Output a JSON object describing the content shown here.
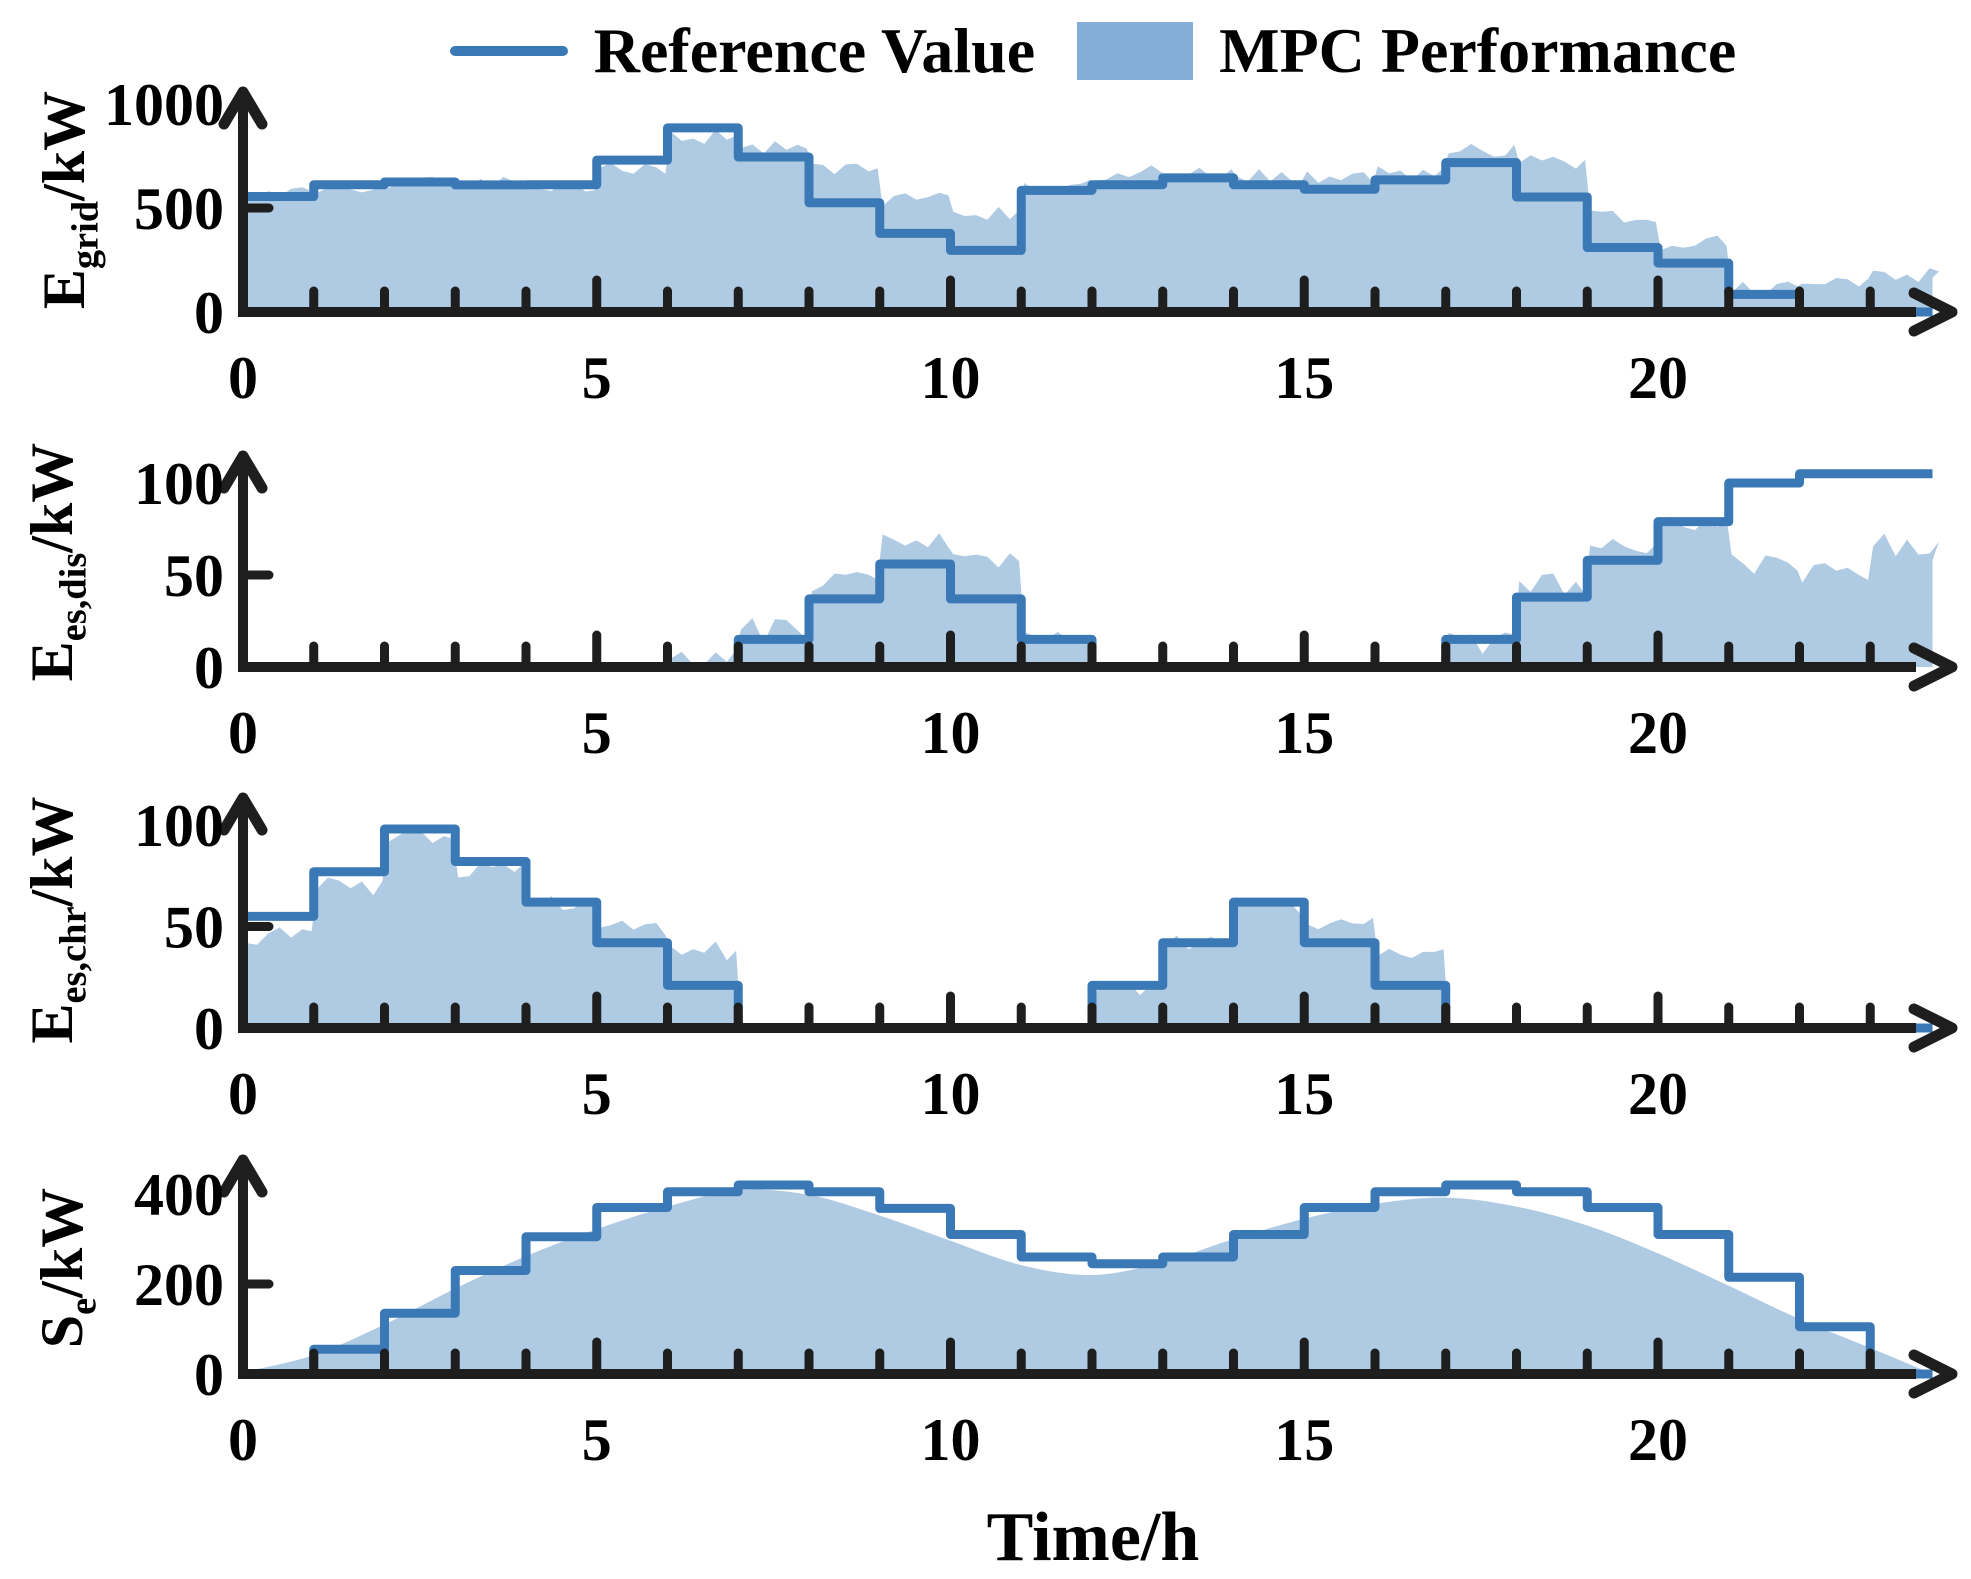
{
  "legend": {
    "items": [
      {
        "label": "Reference Value",
        "swatch": "line"
      },
      {
        "label": "MPC Performance",
        "swatch": "patch"
      }
    ]
  },
  "xlabel": "Time/h",
  "colors": {
    "reference_line": "#3B79B6",
    "mpc_fill": "#AFCAE3",
    "legend_patch": "#85AED7",
    "axis": "#1E1E1E",
    "text": "#000000"
  },
  "x_axis": {
    "labeled_ticks": [
      0,
      5,
      10,
      15,
      20
    ],
    "minor_tick_every_hours": 1,
    "range_hours": [
      0,
      24
    ]
  },
  "chart_data": [
    {
      "type": "area",
      "panel": "E_grid",
      "ylabel_main": "E",
      "ylabel_sub": "grid",
      "ylabel_unit": "/kW",
      "ylim": [
        0,
        1000
      ],
      "yticks": [
        0,
        500,
        1000
      ],
      "x_hours": [
        0,
        1,
        2,
        3,
        4,
        5,
        6,
        7,
        8,
        9,
        10,
        11,
        12,
        13,
        14,
        15,
        16,
        17,
        18,
        19,
        20,
        21,
        22,
        23
      ],
      "series": [
        {
          "name": "Reference Value",
          "style": "step-line",
          "values": [
            555,
            612,
            625,
            611,
            612,
            730,
            885,
            745,
            525,
            378,
            296,
            585,
            612,
            645,
            612,
            590,
            635,
            718,
            553,
            310,
            235,
            85,
            0,
            0
          ]
        },
        {
          "name": "MPC Performance",
          "style": "filled-area",
          "values": [
            578,
            608,
            615,
            628,
            612,
            695,
            838,
            795,
            685,
            540,
            468,
            622,
            668,
            672,
            655,
            642,
            665,
            775,
            722,
            455,
            335,
            108,
            150,
            180
          ],
          "end_value": 165,
          "noise_amp": 38,
          "smooth": false
        }
      ]
    },
    {
      "type": "area",
      "panel": "E_es,dis",
      "ylabel_main": "E",
      "ylabel_sub": "es,dis",
      "ylabel_unit": "/kW",
      "ylim": [
        0,
        110
      ],
      "yticks": [
        0,
        50,
        100
      ],
      "x_hours": [
        0,
        1,
        2,
        3,
        4,
        5,
        6,
        7,
        8,
        9,
        10,
        11,
        12,
        13,
        14,
        15,
        16,
        17,
        18,
        19,
        20,
        21,
        22,
        23
      ],
      "series": [
        {
          "name": "Reference Value",
          "style": "step-line",
          "values": [
            0,
            0,
            0,
            0,
            0,
            0,
            0,
            15,
            37,
            56,
            37,
            15,
            0,
            0,
            0,
            0,
            0,
            15,
            38,
            58,
            79,
            100,
            105,
            105
          ]
        },
        {
          "name": "MPC Performance",
          "style": "filled-area",
          "values": [
            0,
            0,
            0,
            0,
            0,
            0,
            3,
            20,
            46,
            66,
            56,
            13,
            0,
            0,
            0,
            0,
            0,
            13,
            45,
            64,
            77,
            55,
            52,
            66
          ],
          "end_value": 58,
          "noise_amp": 7,
          "smooth": false
        }
      ]
    },
    {
      "type": "area",
      "panel": "E_es,chr",
      "ylabel_main": "E",
      "ylabel_sub": "es,chr",
      "ylabel_unit": "/kW",
      "ylim": [
        0,
        110
      ],
      "yticks": [
        0,
        50,
        100
      ],
      "x_hours": [
        0,
        1,
        2,
        3,
        4,
        5,
        6,
        7,
        8,
        9,
        10,
        11,
        12,
        13,
        14,
        15,
        16,
        17,
        18,
        19,
        20,
        21,
        22,
        23
      ],
      "series": [
        {
          "name": "Reference Value",
          "style": "step-line",
          "values": [
            55,
            77,
            98,
            82,
            62,
            42,
            21,
            0,
            0,
            0,
            0,
            0,
            21,
            42,
            62,
            42,
            21,
            0,
            0,
            0,
            0,
            0,
            0,
            0
          ]
        },
        {
          "name": "MPC Performance",
          "style": "filled-area",
          "values": [
            45,
            70,
            94,
            79,
            60,
            48,
            38,
            0,
            0,
            0,
            0,
            0,
            19,
            41,
            59,
            51,
            36,
            0,
            0,
            0,
            0,
            0,
            0,
            0
          ],
          "end_value": 0,
          "noise_amp": 5,
          "smooth": false
        }
      ]
    },
    {
      "type": "area",
      "panel": "S_e",
      "ylabel_main": "S",
      "ylabel_sub": "e",
      "ylabel_unit": "/kW",
      "ylim": [
        0,
        440
      ],
      "yticks": [
        0,
        200,
        400
      ],
      "x_hours": [
        0,
        1,
        2,
        3,
        4,
        5,
        6,
        7,
        8,
        9,
        10,
        11,
        12,
        13,
        14,
        15,
        16,
        17,
        18,
        19,
        20,
        21,
        22,
        23
      ],
      "series": [
        {
          "name": "Reference Value",
          "style": "step-line",
          "values": [
            0,
            55,
            135,
            230,
            305,
            370,
            405,
            420,
            405,
            368,
            310,
            260,
            245,
            260,
            310,
            370,
            405,
            420,
            405,
            370,
            310,
            215,
            105,
            0
          ]
        },
        {
          "name": "MPC Performance",
          "style": "filled-area",
          "values": [
            4,
            42,
            110,
            190,
            262,
            322,
            372,
            408,
            398,
            352,
            296,
            242,
            220,
            248,
            300,
            345,
            378,
            392,
            372,
            330,
            268,
            196,
            122,
            58
          ],
          "end_value": 0,
          "noise_amp": 0,
          "smooth": true
        }
      ]
    }
  ]
}
